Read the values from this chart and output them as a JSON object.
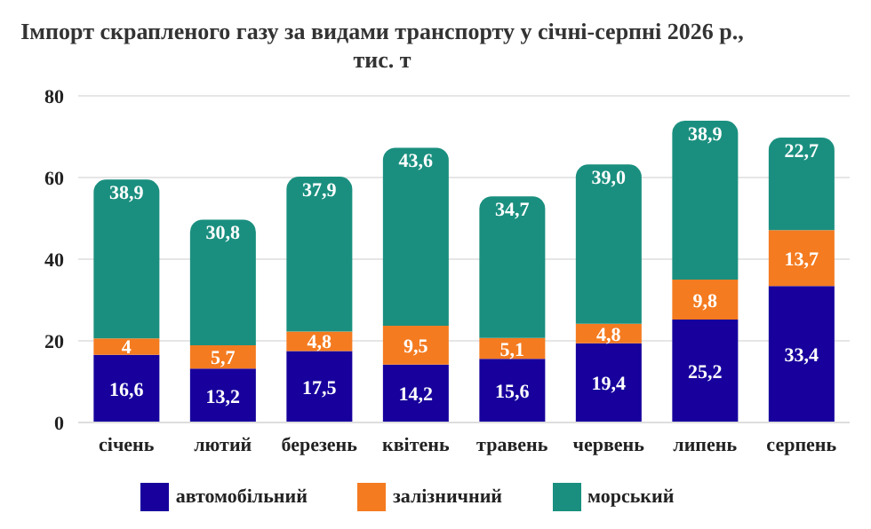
{
  "chart_data": {
    "type": "bar",
    "title": "Імпорт скрапленого газу за видами транспорту у січні-серпні 2026 р., тис. т",
    "categories": [
      "січень",
      "лютий",
      "березень",
      "квітень",
      "травень",
      "червень",
      "липень",
      "серпень"
    ],
    "stacked": true,
    "series": [
      {
        "name": "автомобільний",
        "color": "#17009c",
        "values": [
          16.6,
          13.2,
          17.5,
          14.2,
          15.6,
          19.4,
          25.2,
          33.4
        ],
        "value_labels": [
          "16,6",
          "13,2",
          "17,5",
          "14,2",
          "15,6",
          "19,4",
          "25,2",
          "33,4"
        ]
      },
      {
        "name": "залізничний",
        "color": "#f47b20",
        "values": [
          4,
          5.7,
          4.8,
          9.5,
          5.1,
          4.8,
          9.8,
          13.7
        ],
        "value_labels": [
          "4",
          "5,7",
          "4,8",
          "9,5",
          "5,1",
          "4,8",
          "9,8",
          "13,7"
        ]
      },
      {
        "name": "морський",
        "color": "#1a8f7f",
        "values": [
          38.9,
          30.8,
          37.9,
          43.6,
          34.7,
          39.0,
          38.9,
          22.7
        ],
        "value_labels": [
          "38,9",
          "30,8",
          "37,9",
          "43,6",
          "34,7",
          "39,0",
          "38,9",
          "22,7"
        ]
      }
    ],
    "ylim": [
      0,
      80
    ],
    "yticks": [
      0,
      20,
      40,
      60,
      80
    ],
    "grid": "y",
    "legend": "bottom"
  }
}
